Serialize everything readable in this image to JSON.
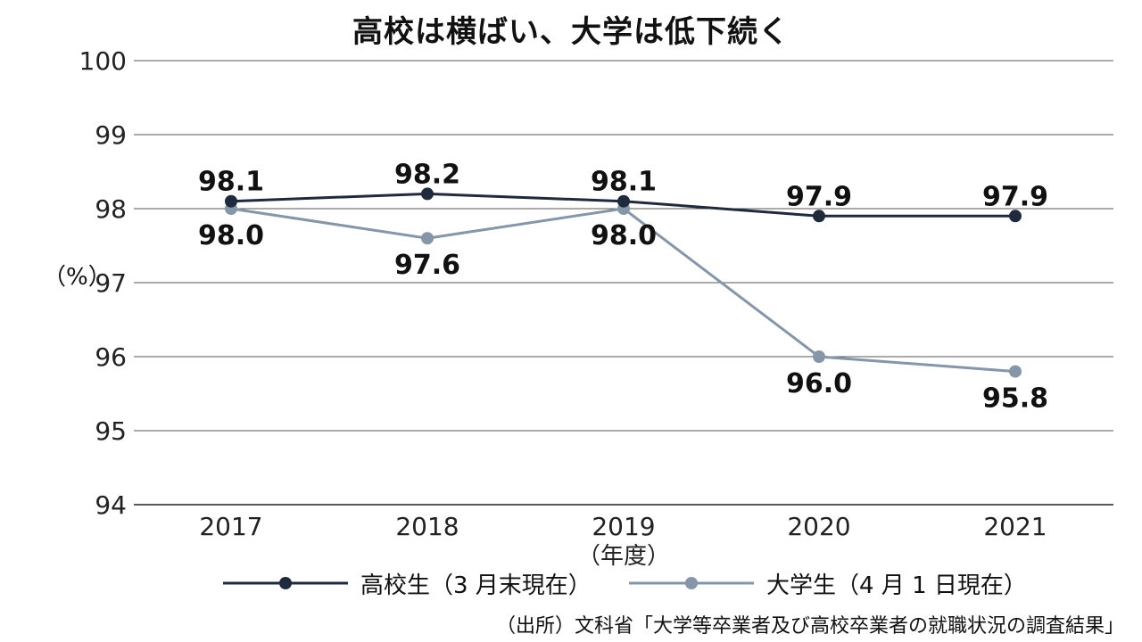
{
  "chart_data": {
    "type": "line",
    "title": "高校は横ばい、大学は低下続く",
    "categories": [
      "2017",
      "2018",
      "2019",
      "2020",
      "2021"
    ],
    "x_unit": "（年度）",
    "ylabel": "（%）",
    "ylim": [
      94,
      100
    ],
    "yticks": [
      94,
      95,
      96,
      97,
      98,
      99,
      100
    ],
    "grid": true,
    "legend_position": "bottom",
    "series": [
      {
        "name": "高校生（3 月末現在）",
        "values": [
          98.1,
          98.2,
          98.1,
          97.9,
          97.9
        ],
        "color": "#1f2a3c",
        "labels": [
          "98.1",
          "98.2",
          "98.1",
          "97.9",
          "97.9"
        ],
        "label_side": "above"
      },
      {
        "name": "大学生（4 月 1 日現在）",
        "values": [
          98.0,
          97.6,
          98.0,
          96.0,
          95.8
        ],
        "color": "#8496a8",
        "labels": [
          "98.0",
          "97.6",
          "98.0",
          "96.0",
          "95.8"
        ],
        "label_side": "below"
      }
    ],
    "source": "（出所）文科省「大学等卒業者及び高校卒業者の就職状況の調査結果」"
  }
}
